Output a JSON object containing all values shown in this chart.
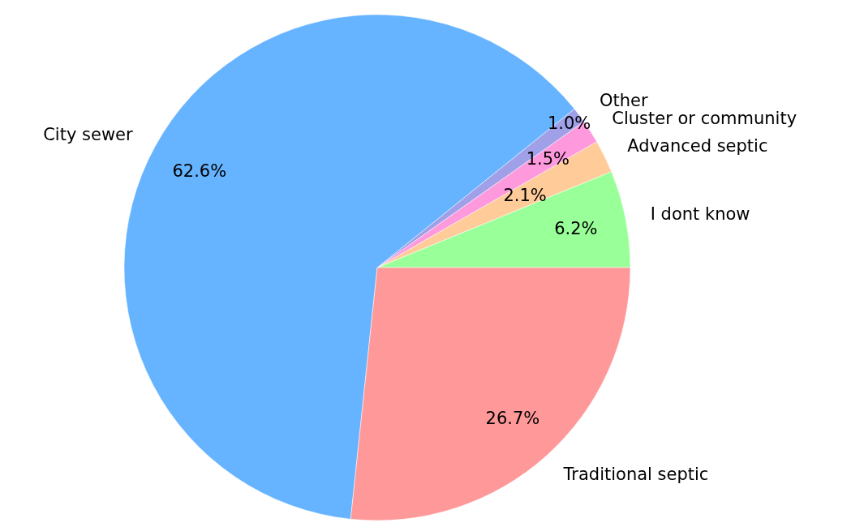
{
  "chart_data": {
    "type": "pie",
    "categories": [
      "I dont know",
      "Advanced septic",
      "Cluster or community",
      "Other",
      "City sewer",
      "Traditional septic"
    ],
    "values": [
      6.2,
      2.1,
      1.5,
      1.0,
      62.6,
      26.7
    ],
    "colors": [
      "#99ff99",
      "#ffcc99",
      "#ff99dd",
      "#a0a0e8",
      "#66b3ff",
      "#ff9999"
    ],
    "value_labels": [
      "6.2%",
      "2.1%",
      "1.5%",
      "1.0%",
      "62.6%",
      "26.7%"
    ]
  }
}
